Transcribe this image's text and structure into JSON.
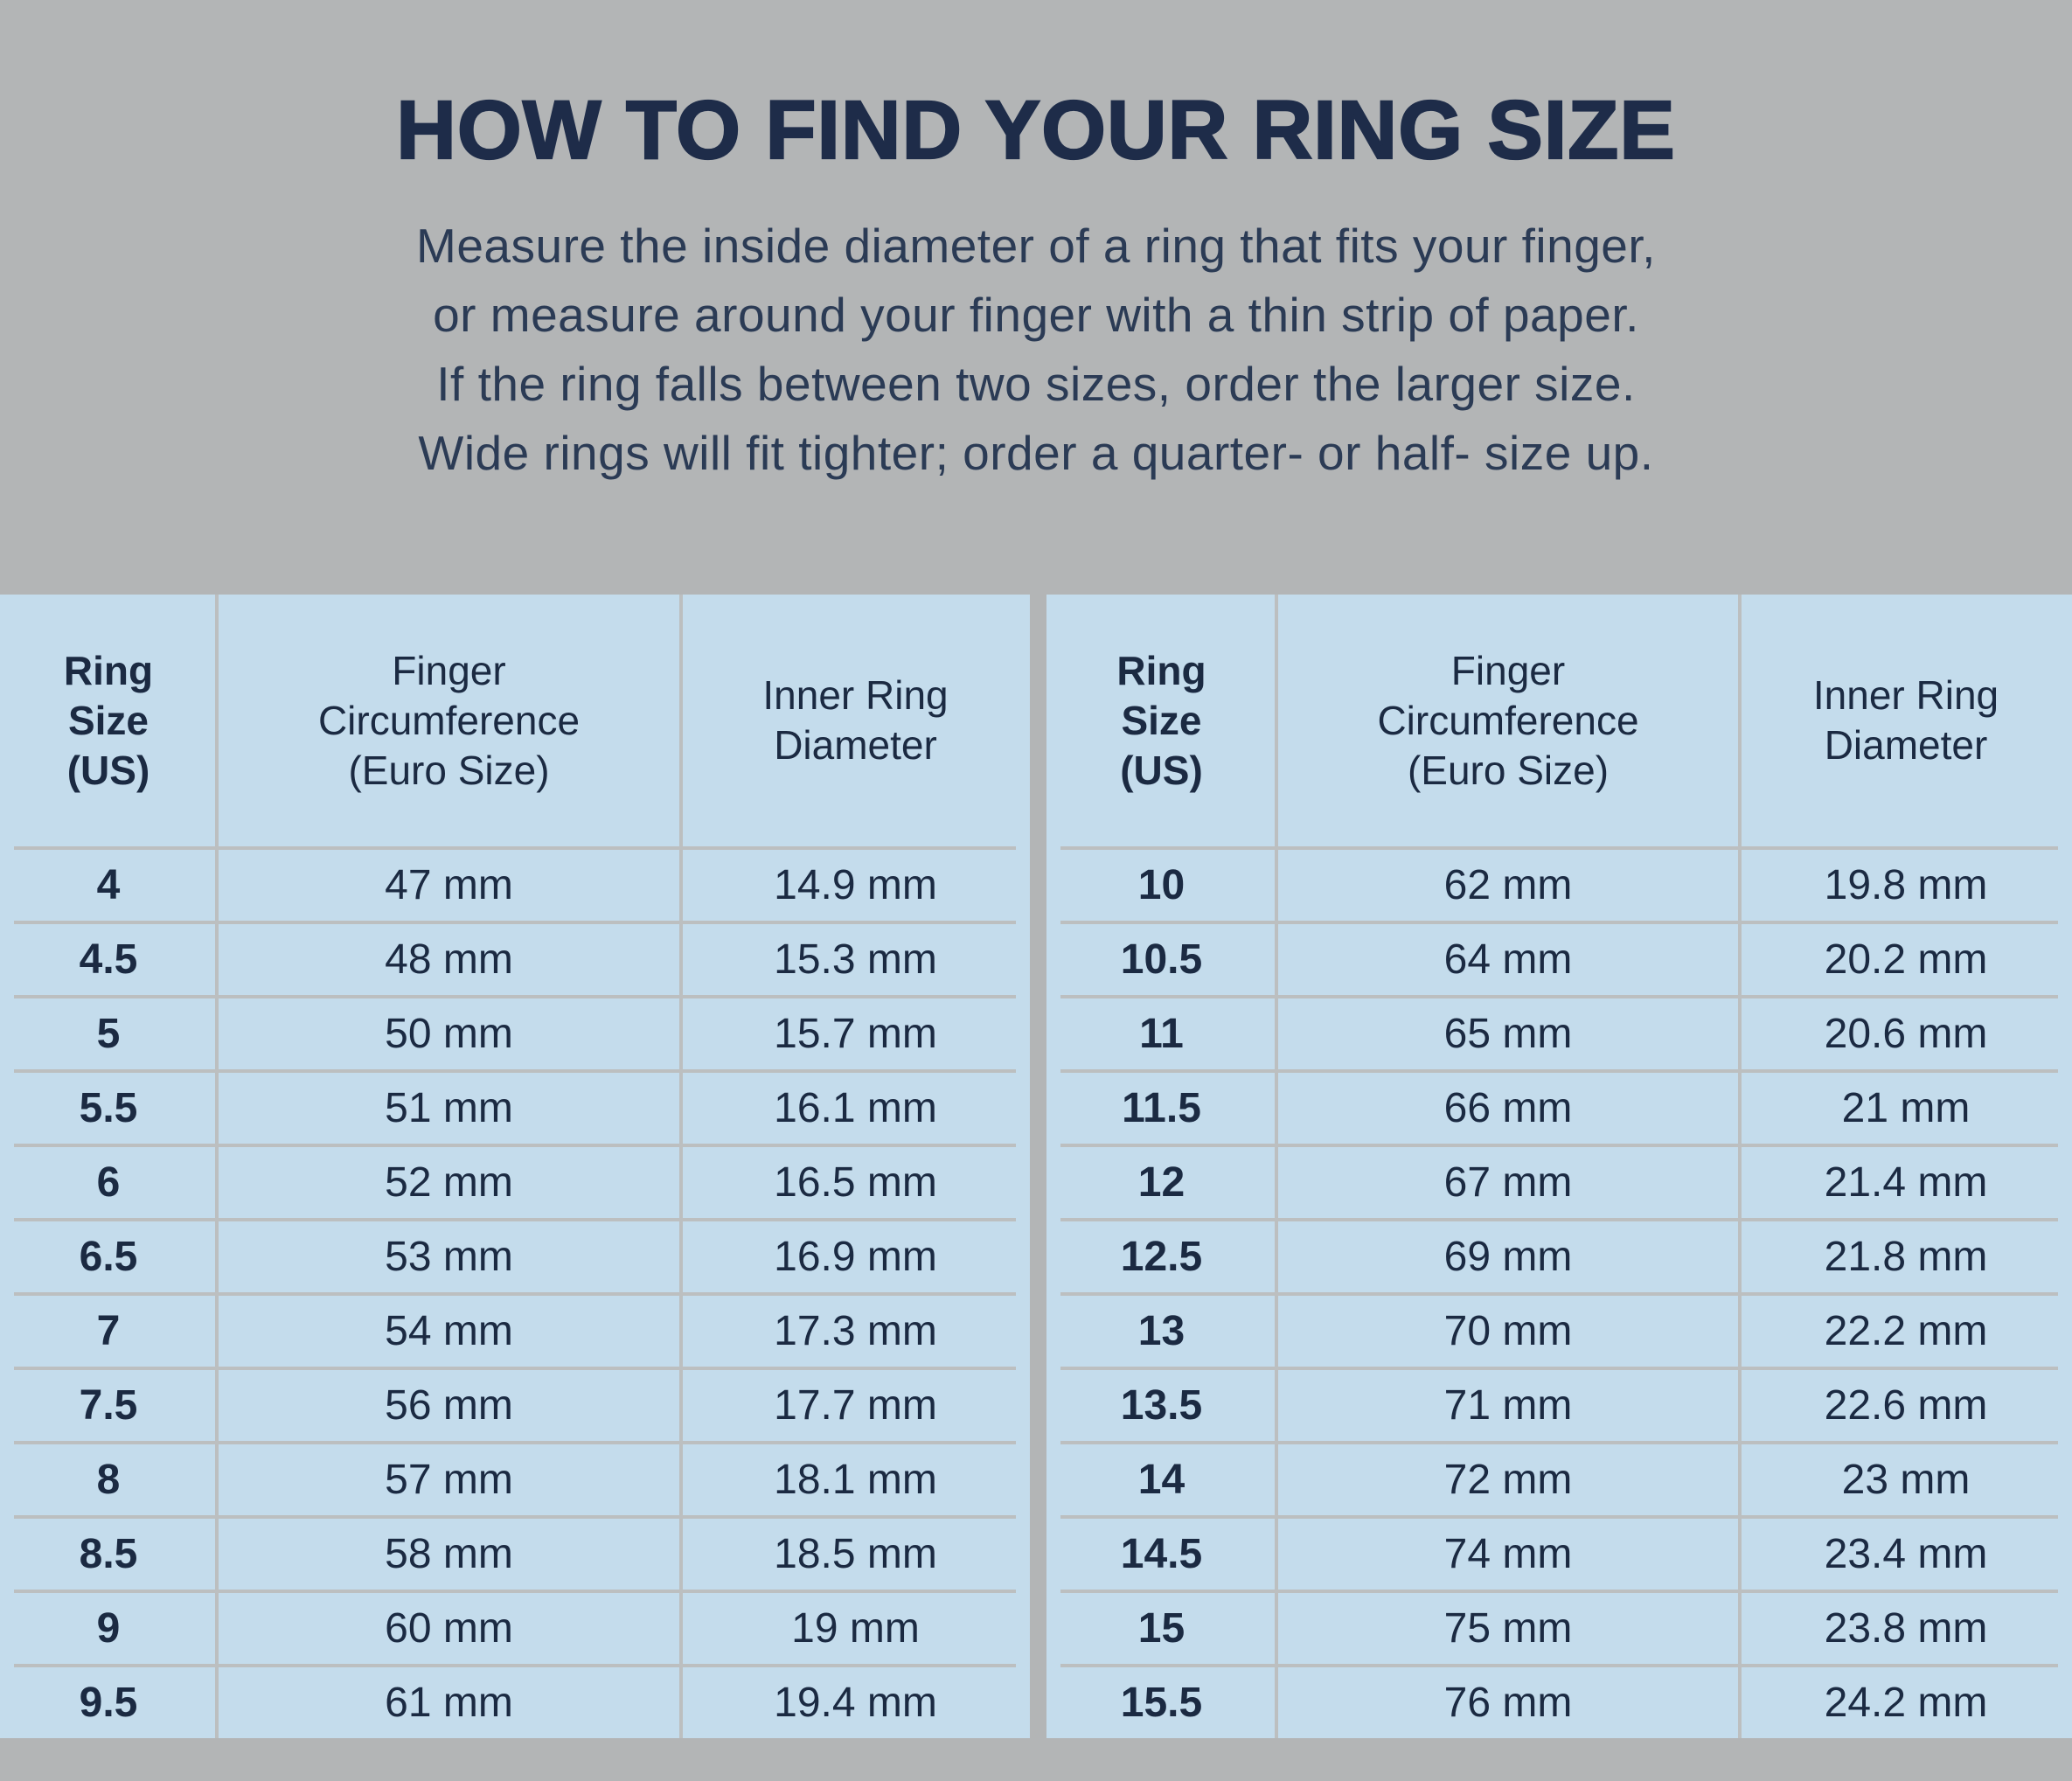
{
  "header": {
    "title": "HOW TO FIND YOUR RING SIZE",
    "subtitle_lines": [
      "Measure the inside diameter of a ring that fits your finger,",
      "or measure around your finger with a thin strip of paper.",
      "If the ring falls between two sizes, order the larger size.",
      "Wide rings will fit tighter; order a quarter- or half- size up."
    ]
  },
  "colors": {
    "page_background": "#b3b5b6",
    "table_background": "#c4dcec",
    "grid_divider": "#bcbfc0",
    "title_navy": "#1e2c49",
    "text_navy": "#1b2a42"
  },
  "chart_data": [
    {
      "type": "table",
      "title": "HOW TO FIND YOUR RING SIZE",
      "columns": [
        "Ring Size (US)",
        "Finger Circumference (Euro Size)",
        "Inner Ring Diameter"
      ],
      "column_headers_display": [
        "Ring\nSize\n(US)",
        "Finger\nCircumference\n(Euro Size)",
        "Inner Ring\nDiameter"
      ],
      "rows": [
        [
          "4",
          "47 mm",
          "14.9 mm"
        ],
        [
          "4.5",
          "48 mm",
          "15.3 mm"
        ],
        [
          "5",
          "50 mm",
          "15.7 mm"
        ],
        [
          "5.5",
          "51 mm",
          "16.1 mm"
        ],
        [
          "6",
          "52 mm",
          "16.5 mm"
        ],
        [
          "6.5",
          "53 mm",
          "16.9 mm"
        ],
        [
          "7",
          "54 mm",
          "17.3 mm"
        ],
        [
          "7.5",
          "56 mm",
          "17.7 mm"
        ],
        [
          "8",
          "57 mm",
          "18.1 mm"
        ],
        [
          "8.5",
          "58 mm",
          "18.5 mm"
        ],
        [
          "9",
          "60 mm",
          "19 mm"
        ],
        [
          "9.5",
          "61 mm",
          "19.4 mm"
        ]
      ]
    },
    {
      "type": "table",
      "title": "HOW TO FIND YOUR RING SIZE",
      "columns": [
        "Ring Size (US)",
        "Finger Circumference (Euro Size)",
        "Inner Ring Diameter"
      ],
      "column_headers_display": [
        "Ring\nSize\n(US)",
        "Finger\nCircumference\n(Euro Size)",
        "Inner Ring\nDiameter"
      ],
      "rows": [
        [
          "10",
          "62 mm",
          "19.8 mm"
        ],
        [
          "10.5",
          "64 mm",
          "20.2 mm"
        ],
        [
          "11",
          "65 mm",
          "20.6 mm"
        ],
        [
          "11.5",
          "66 mm",
          "21 mm"
        ],
        [
          "12",
          "67 mm",
          "21.4 mm"
        ],
        [
          "12.5",
          "69 mm",
          "21.8 mm"
        ],
        [
          "13",
          "70 mm",
          "22.2 mm"
        ],
        [
          "13.5",
          "71 mm",
          "22.6 mm"
        ],
        [
          "14",
          "72 mm",
          "23 mm"
        ],
        [
          "14.5",
          "74 mm",
          "23.4 mm"
        ],
        [
          "15",
          "75 mm",
          "23.8 mm"
        ],
        [
          "15.5",
          "76 mm",
          "24.2 mm"
        ]
      ]
    }
  ]
}
